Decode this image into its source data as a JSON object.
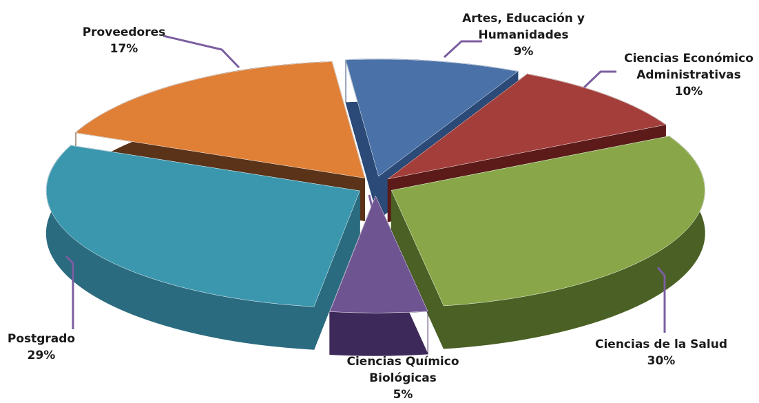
{
  "chart_data": {
    "type": "pie",
    "style": "3d-exploded",
    "legend": "none",
    "categories": [
      "Artes, Educación y Humanidades",
      "Ciencias Económico Administrativas",
      "Ciencias de la Salud",
      "Ciencias Químico Biológicas",
      "Postgrado",
      "Proveedores"
    ],
    "values": [
      9,
      10,
      30,
      5,
      29,
      17
    ],
    "value_labels": [
      "9%",
      "10%",
      "30%",
      "5%",
      "29%",
      "17%"
    ],
    "label_lines": [
      [
        "Artes, Educación y",
        "Humanidades"
      ],
      [
        "Ciencias Económico",
        "Administrativas"
      ],
      [
        "Ciencias de la Salud"
      ],
      [
        "Ciencias Químico",
        "Biológicas"
      ],
      [
        "Postgrado"
      ],
      [
        "Proveedores"
      ]
    ],
    "colors": [
      "#4a72a8",
      "#a33e3b",
      "#89a748",
      "#6e5591",
      "#3b97ae",
      "#e07f36"
    ],
    "side_colors": [
      "#2b4a78",
      "#5c1a18",
      "#4a6024",
      "#3e2a5a",
      "#2a6b80",
      "#5a3318"
    ],
    "leader_color": "#7b5ea0"
  }
}
